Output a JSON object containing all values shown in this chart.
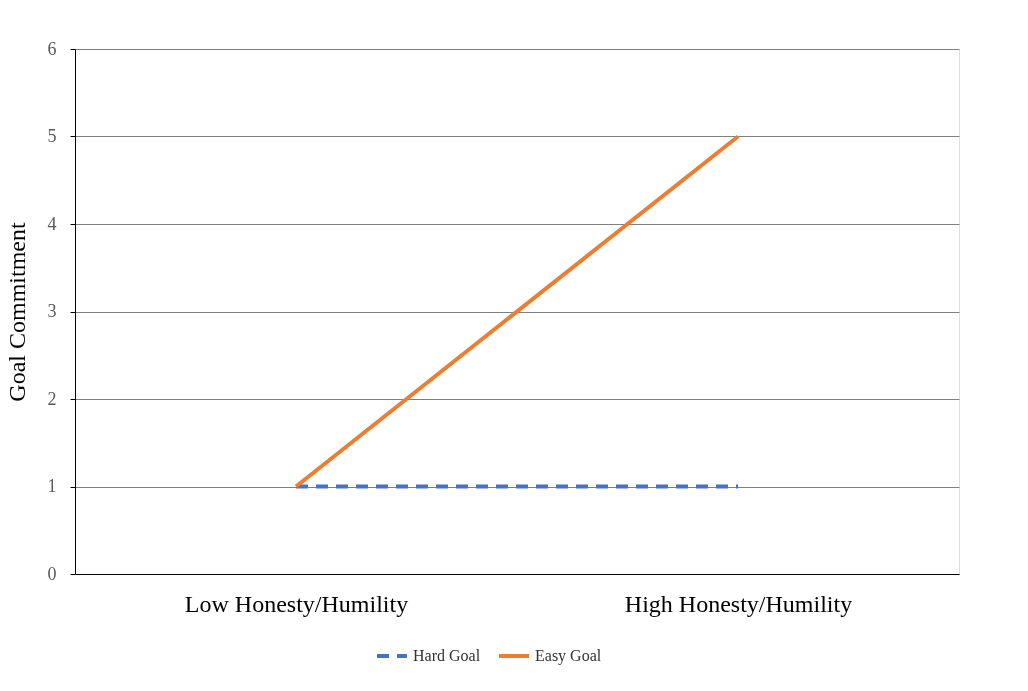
{
  "chart_data": {
    "type": "line",
    "categories": [
      "Low Honesty/Humility",
      "High Honesty/Humility"
    ],
    "ylabel": "Goal Commitment",
    "series": [
      {
        "name": "Hard Goal",
        "color": "#4472c4",
        "values": [
          1,
          1
        ],
        "line_style": "dashed"
      },
      {
        "name": "Easy Goal",
        "color": "#ed7d31",
        "values": [
          1,
          5
        ],
        "line_style": "solid"
      }
    ],
    "ylim": [
      0,
      6
    ],
    "yticks": [
      0,
      1,
      2,
      3,
      4,
      5,
      6
    ],
    "grid": "y",
    "legend": "bottom",
    "marker": "none"
  }
}
